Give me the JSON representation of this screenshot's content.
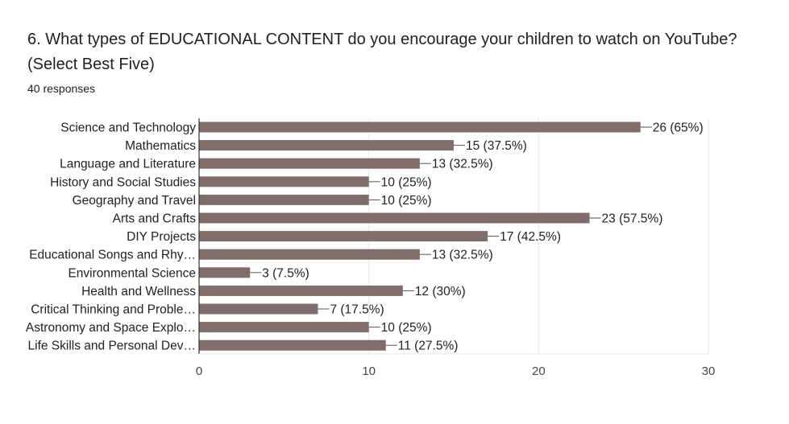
{
  "question": {
    "title": "6. What types of  EDUCATIONAL CONTENT do you encourage your children to watch on YouTube? (Select Best Five)",
    "responses": "40 responses"
  },
  "colors": {
    "bar": "#7f6d6b",
    "grid": "#e6e6e6",
    "axis": "#333333",
    "text": "#202124",
    "tick": "#444444"
  },
  "chart_data": {
    "type": "bar",
    "orientation": "horizontal",
    "categories": [
      "Science and Technology",
      "Mathematics",
      "Language and Literature",
      "History and Social Studies",
      "Geography and Travel",
      "Arts and Crafts",
      "DIY Projects",
      "Educational Songs and Rhy…",
      "Environmental Science",
      "Health and Wellness",
      "Critical Thinking and Proble…",
      "Astronomy and Space Explo…",
      "Life Skills and Personal Dev…"
    ],
    "values": [
      26,
      15,
      13,
      10,
      10,
      23,
      17,
      13,
      3,
      12,
      7,
      10,
      11
    ],
    "data_labels": [
      "26 (65%)",
      "15 (37.5%)",
      "13 (32.5%)",
      "10 (25%)",
      "10 (25%)",
      "23 (57.5%)",
      "17 (42.5%)",
      "13 (32.5%)",
      "3 (7.5%)",
      "12 (30%)",
      "7 (17.5%)",
      "10 (25%)",
      "11 (27.5%)"
    ],
    "xlim": [
      0,
      30
    ],
    "xticks": [
      0,
      10,
      20,
      30
    ],
    "xlabel": "",
    "ylabel": "",
    "grid": true,
    "legend": "none"
  }
}
